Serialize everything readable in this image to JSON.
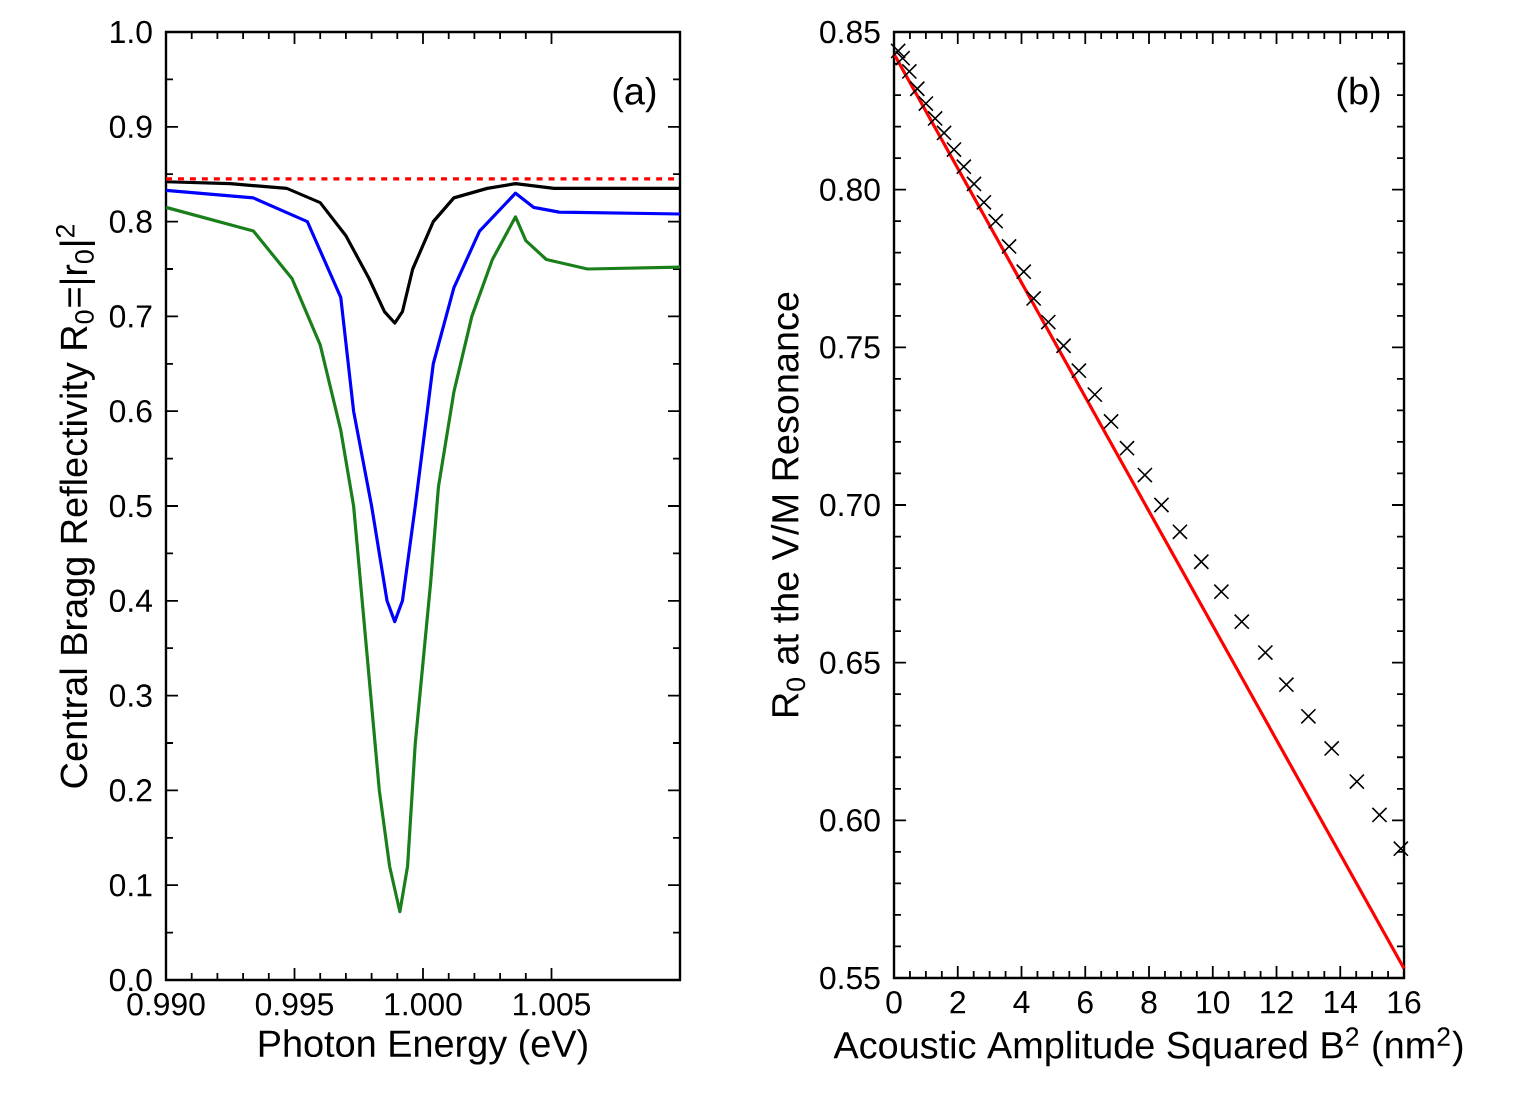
{
  "chart_data": [
    {
      "type": "line",
      "xlabel": "Photon Energy (eV)",
      "ylabel": "Central Bragg Reflectivity R$_{0}$=|r$_{0}$|$^{2}$",
      "annotations": [
        "(a)"
      ],
      "xlim": [
        0.99,
        1.01
      ],
      "ylim": [
        0,
        1.0
      ],
      "xticks": [
        {
          "value": 0.99,
          "label": "0.990"
        },
        {
          "value": 0.995,
          "label": "0.995"
        },
        {
          "value": 1.0,
          "label": "1.000"
        },
        {
          "value": 1.005,
          "label": "1.005"
        }
      ],
      "yticks": [
        {
          "value": 0,
          "label": "0.0"
        },
        {
          "value": 0.1,
          "label": "0.1"
        },
        {
          "value": 0.2,
          "label": "0.2"
        },
        {
          "value": 0.3,
          "label": "0.3"
        },
        {
          "value": 0.4,
          "label": "0.4"
        },
        {
          "value": 0.5,
          "label": "0.5"
        },
        {
          "value": 0.6,
          "label": "0.6"
        },
        {
          "value": 0.7,
          "label": "0.7"
        },
        {
          "value": 0.8,
          "label": "0.8"
        },
        {
          "value": 0.9,
          "label": "0.9"
        },
        {
          "value": 1.0,
          "label": "1.0"
        }
      ],
      "ref_lines": [
        {
          "axis": "y",
          "value": 0.845,
          "color": "#ff0000",
          "line_style": "dashed"
        }
      ],
      "series": [
        {
          "color": "#000000",
          "x": [
            0.99,
            0.9925,
            0.9947,
            0.996,
            0.997,
            0.9979,
            0.9985,
            0.9989,
            0.9992,
            0.9996,
            1.0004,
            1.0012,
            1.0025,
            1.0036,
            1.0051,
            1.01
          ],
          "values": [
            0.842,
            0.84,
            0.835,
            0.82,
            0.785,
            0.74,
            0.705,
            0.693,
            0.705,
            0.75,
            0.8,
            0.825,
            0.835,
            0.84,
            0.835,
            0.835
          ]
        },
        {
          "color": "#0000ff",
          "x": [
            0.99,
            0.9934,
            0.9955,
            0.9968,
            0.9973,
            0.998,
            0.9986,
            0.9989,
            0.9992,
            0.9997,
            1.0004,
            1.0012,
            1.0022,
            1.0036,
            1.0043,
            1.0053,
            1.01
          ],
          "values": [
            0.833,
            0.825,
            0.8,
            0.72,
            0.6,
            0.5,
            0.4,
            0.378,
            0.4,
            0.5,
            0.65,
            0.73,
            0.79,
            0.83,
            0.815,
            0.81,
            0.808
          ]
        },
        {
          "color": "#1a7f1a",
          "x": [
            0.99,
            0.9934,
            0.9949,
            0.996,
            0.9968,
            0.9973,
            0.9978,
            0.9983,
            0.9987,
            0.9991,
            0.9994,
            0.9997,
            1.0003,
            1.0006,
            1.0012,
            1.0019,
            1.0027,
            1.0036,
            1.004,
            1.0048,
            1.0064,
            1.01
          ],
          "values": [
            0.815,
            0.79,
            0.74,
            0.67,
            0.58,
            0.5,
            0.35,
            0.2,
            0.12,
            0.072,
            0.12,
            0.25,
            0.42,
            0.52,
            0.62,
            0.7,
            0.76,
            0.805,
            0.78,
            0.76,
            0.75,
            0.752
          ]
        }
      ]
    },
    {
      "type": "scatter",
      "xlabel": "Acoustic Amplitude Squared B$^{2}$ (nm$^{2}$)",
      "ylabel": "R$_{0}$ at the V/M Resonance",
      "annotations": [
        "(b)"
      ],
      "xlim": [
        0,
        16
      ],
      "ylim": [
        0.55,
        0.85
      ],
      "xticks": [
        0,
        2,
        4,
        6,
        8,
        10,
        12,
        14,
        16
      ],
      "yticks": [
        0.55,
        {
          "value": 0.6,
          "label": "0.60"
        },
        0.65,
        {
          "value": 0.7,
          "label": "0.70"
        },
        0.75,
        {
          "value": 0.8,
          "label": "0.80"
        },
        0.85
      ],
      "series": [
        {
          "marker": "cross",
          "color": "#000000",
          "x": [
            0.13,
            0.27,
            0.48,
            0.73,
            1.0,
            1.29,
            1.57,
            1.88,
            2.19,
            2.51,
            2.82,
            3.19,
            3.61,
            4.07,
            4.38,
            4.84,
            5.32,
            5.8,
            6.3,
            6.81,
            7.31,
            7.87,
            8.39,
            8.97,
            9.64,
            10.27,
            10.91,
            11.65,
            12.31,
            13.0,
            13.73,
            14.52,
            15.23,
            15.9
          ],
          "values": [
            0.844,
            0.8417,
            0.8375,
            0.832,
            0.8273,
            0.8226,
            0.818,
            0.8127,
            0.8073,
            0.8018,
            0.796,
            0.79,
            0.782,
            0.774,
            0.7655,
            0.758,
            0.7505,
            0.7426,
            0.735,
            0.7265,
            0.718,
            0.7095,
            0.7,
            0.6915,
            0.682,
            0.6725,
            0.663,
            0.6532,
            0.643,
            0.633,
            0.6228,
            0.6123,
            0.6017,
            0.591
          ]
        },
        {
          "type": "line",
          "color": "#ff0000",
          "x": [
            0,
            16
          ],
          "values": [
            0.843,
            0.553
          ]
        }
      ]
    }
  ]
}
